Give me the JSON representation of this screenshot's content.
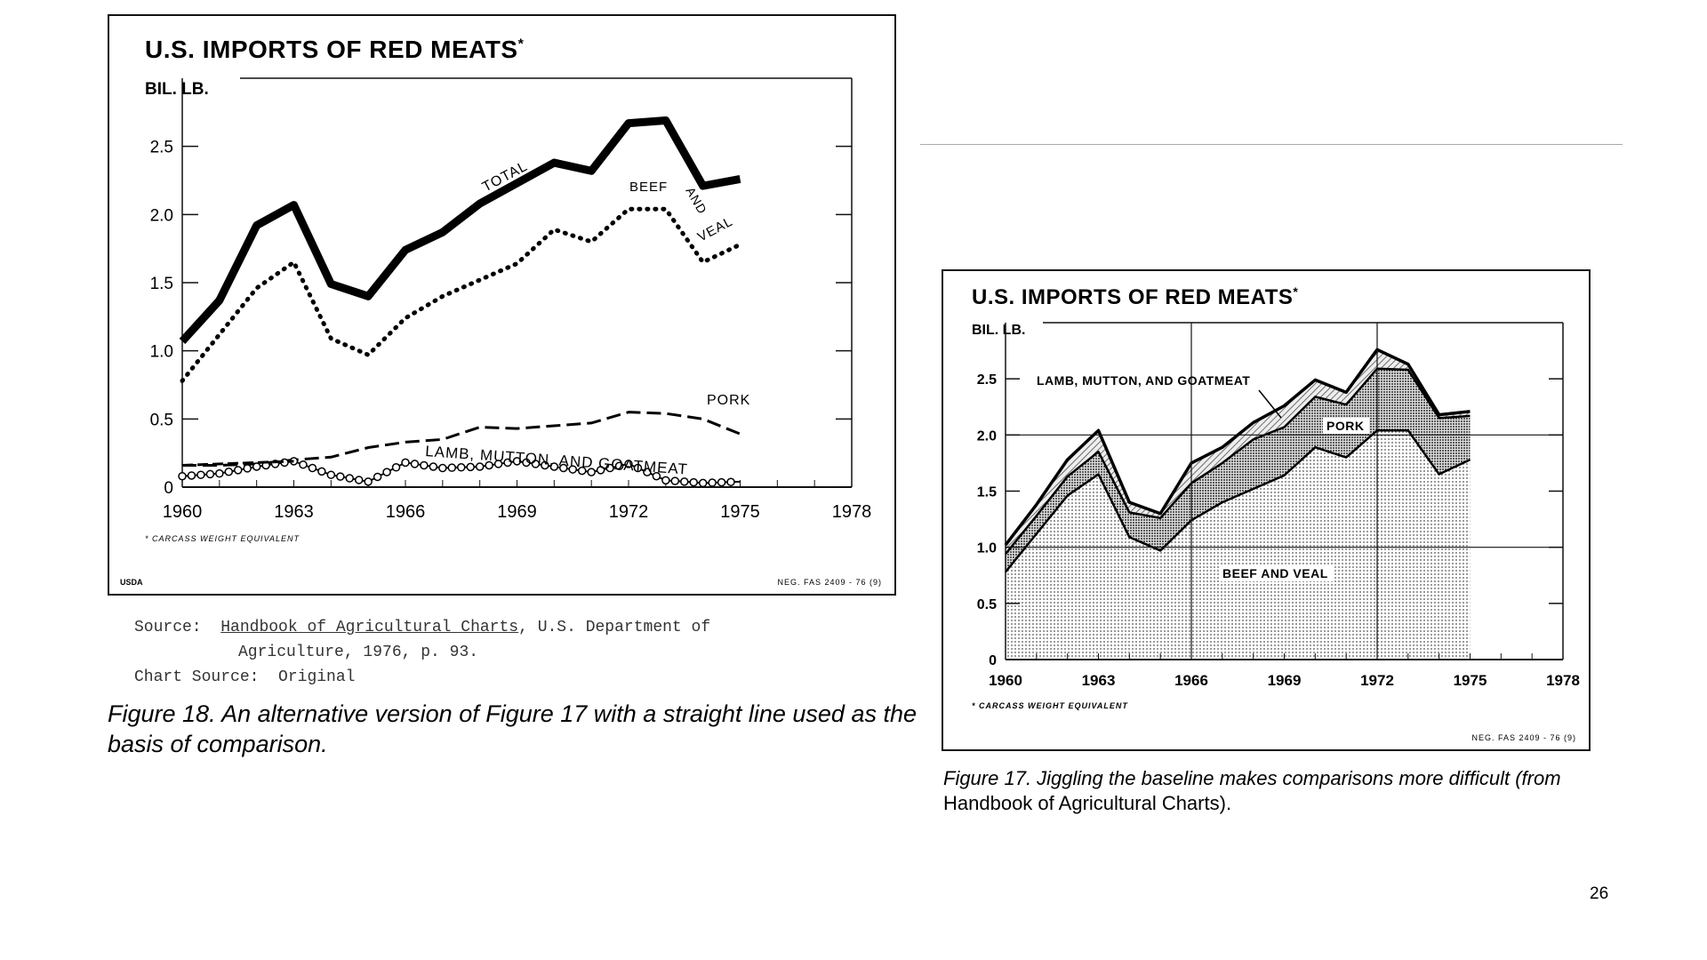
{
  "page_number": "26",
  "figure18": {
    "title": "U.S. IMPORTS OF RED MEATS",
    "title_mark": "*",
    "unit_label": "BIL. LB.",
    "footnote": "* CARCASS WEIGHT EQUIVALENT",
    "agency": "USDA",
    "neg_number": "NEG. FAS 2409 - 76 (9)",
    "source_label": "Source:",
    "source_title": "Handbook of Agricultural Charts",
    "source_rest_1": ", U.S. Department of",
    "source_rest_2": "Agriculture, 1976, p. 93.",
    "chart_source_label": "Chart Source:",
    "chart_source_value": "Original",
    "caption": "Figure 18. An alternative version of Figure 17 with a straight line used as the basis of comparison."
  },
  "figure17": {
    "title": "U.S. IMPORTS OF RED MEATS",
    "title_mark": "*",
    "unit_label": "BIL. LB.",
    "footnote": "* CARCASS WEIGHT EQUIVALENT",
    "neg_number": "NEG. FAS 2409 - 76 (9)",
    "caption_italic": "Figure 17. Jiggling the baseline makes comparisons more difficult (from",
    "caption_plain": " Handbook of Agricultural Charts",
    "caption_end": ")."
  },
  "chart_data": [
    {
      "id": "figure18",
      "type": "line",
      "title": "U.S. IMPORTS OF RED MEATS*",
      "ylabel": "BIL. LB.",
      "xlabel": "",
      "x": [
        1960,
        1961,
        1962,
        1963,
        1964,
        1965,
        1966,
        1967,
        1968,
        1969,
        1970,
        1971,
        1972,
        1973,
        1974,
        1975
      ],
      "xticks": [
        "1960",
        "1963",
        "1966",
        "1969",
        "1972",
        "1975",
        "1978"
      ],
      "yticks": [
        "0",
        "0.5",
        "1.0",
        "1.5",
        "2.0",
        "2.5"
      ],
      "ylim": [
        0,
        3.0
      ],
      "xlim": [
        1960,
        1978
      ],
      "series": [
        {
          "name": "TOTAL",
          "style": "thick-solid",
          "values": [
            1.07,
            1.37,
            1.92,
            2.07,
            1.49,
            1.4,
            1.74,
            1.87,
            2.08,
            2.23,
            2.38,
            2.32,
            2.67,
            2.69,
            2.21,
            2.26
          ]
        },
        {
          "name": "BEEF AND VEAL",
          "style": "dotted",
          "values": [
            0.78,
            1.12,
            1.46,
            1.65,
            1.09,
            0.97,
            1.24,
            1.4,
            1.52,
            1.64,
            1.89,
            1.8,
            2.04,
            2.04,
            1.65,
            1.78
          ]
        },
        {
          "name": "PORK",
          "style": "dashed",
          "values": [
            0.16,
            0.16,
            0.17,
            0.2,
            0.22,
            0.29,
            0.33,
            0.35,
            0.44,
            0.43,
            0.45,
            0.47,
            0.55,
            0.54,
            0.5,
            0.39
          ]
        },
        {
          "name": "LAMB, MUTTON, AND GOATMEAT",
          "style": "beaded",
          "values": [
            0.08,
            0.1,
            0.15,
            0.19,
            0.09,
            0.04,
            0.18,
            0.14,
            0.15,
            0.19,
            0.15,
            0.11,
            0.17,
            0.05,
            0.03,
            0.04
          ]
        }
      ],
      "grid": false
    },
    {
      "id": "figure17",
      "type": "area",
      "stacked": true,
      "title": "U.S. IMPORTS OF RED MEATS*",
      "ylabel": "BIL. LB.",
      "xlabel": "",
      "x": [
        1960,
        1961,
        1962,
        1963,
        1964,
        1965,
        1966,
        1967,
        1968,
        1969,
        1970,
        1971,
        1972,
        1973,
        1974,
        1975
      ],
      "xticks": [
        "1960",
        "1963",
        "1966",
        "1969",
        "1972",
        "1975",
        "1978"
      ],
      "yticks": [
        "0",
        "0.5",
        "1.0",
        "1.5",
        "2.0",
        "2.5"
      ],
      "ylim": [
        0,
        3.0
      ],
      "xlim": [
        1960,
        1978
      ],
      "series": [
        {
          "name": "BEEF AND VEAL",
          "values": [
            0.78,
            1.12,
            1.46,
            1.65,
            1.09,
            0.97,
            1.24,
            1.4,
            1.52,
            1.64,
            1.89,
            1.8,
            2.04,
            2.04,
            1.65,
            1.78
          ]
        },
        {
          "name": "PORK",
          "values": [
            0.16,
            0.16,
            0.17,
            0.2,
            0.22,
            0.29,
            0.33,
            0.35,
            0.44,
            0.43,
            0.45,
            0.47,
            0.55,
            0.54,
            0.5,
            0.39
          ]
        },
        {
          "name": "LAMB, MUTTON, AND GOATMEAT",
          "values": [
            0.08,
            0.1,
            0.15,
            0.19,
            0.09,
            0.04,
            0.18,
            0.14,
            0.15,
            0.19,
            0.15,
            0.11,
            0.17,
            0.05,
            0.03,
            0.04
          ]
        }
      ],
      "grid": true
    }
  ]
}
